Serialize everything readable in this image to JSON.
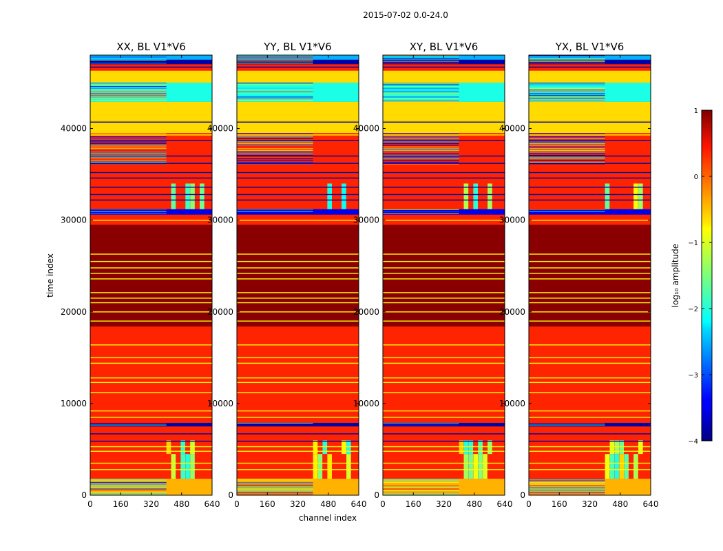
{
  "figure": {
    "suptitle": "2015-07-02 0.0-24.0"
  },
  "chart_data": {
    "type": "heatmap",
    "xlabel": "channel index",
    "ylabel": "time index",
    "xlim": [
      0,
      640
    ],
    "ylim": [
      0,
      48000
    ],
    "xticks": [
      0,
      160,
      320,
      480,
      640
    ],
    "yticks": [
      0,
      10000,
      20000,
      30000,
      40000
    ],
    "panels": [
      {
        "id": "xx",
        "title": "XX, BL V1*V6"
      },
      {
        "id": "yy",
        "title": "YY, BL V1*V6"
      },
      {
        "id": "xy",
        "title": "XY, BL V1*V6"
      },
      {
        "id": "yx",
        "title": "YX, BL V1*V6"
      }
    ],
    "colorbar": {
      "label": "log₁₀ amplitude",
      "colormap": "jet",
      "range": [
        -4,
        1
      ],
      "ticks": [
        1,
        0,
        -1,
        -2,
        -3,
        -4
      ],
      "tick_labels": [
        "1",
        "0",
        "−1",
        "−2",
        "−3",
        "−4"
      ]
    },
    "sharp_channel_edge": 400,
    "rfi_channel_range": [
      400,
      600
    ],
    "time_bands": [
      {
        "t0": 0,
        "t1": 1800,
        "value": -0.5,
        "noise": true
      },
      {
        "t0": 1800,
        "t1": 4500,
        "value": 0.2,
        "flagged_channels": true
      },
      {
        "t0": 4500,
        "t1": 6000,
        "value": 0.2,
        "flagged_channels": true
      },
      {
        "t0": 6000,
        "t1": 7500,
        "value": 0.2
      },
      {
        "t0": 7500,
        "t1": 7900,
        "value": -3.8,
        "noise": true
      },
      {
        "t0": 7900,
        "t1": 18400,
        "value": 0.2
      },
      {
        "t0": 18400,
        "t1": 29500,
        "value": 0.95
      },
      {
        "t0": 29500,
        "t1": 30600,
        "value": 0.2
      },
      {
        "t0": 30600,
        "t1": 31200,
        "value": -3.5,
        "noise": true
      },
      {
        "t0": 31200,
        "t1": 34000,
        "value": 0.2,
        "flagged_channels": true
      },
      {
        "t0": 34000,
        "t1": 36000,
        "value": 0.2
      },
      {
        "t0": 36000,
        "t1": 39500,
        "value": 0.2,
        "noise": true
      },
      {
        "t0": 39500,
        "t1": 40800,
        "value": -0.7
      },
      {
        "t0": 40800,
        "t1": 42900,
        "value": -0.7
      },
      {
        "t0": 42900,
        "t1": 45000,
        "value": -2.0,
        "noise": true
      },
      {
        "t0": 45000,
        "t1": 46300,
        "value": -0.7
      },
      {
        "t0": 46300,
        "t1": 47000,
        "value": 0.2
      },
      {
        "t0": 47000,
        "t1": 47500,
        "value": -3.8,
        "noise": true
      },
      {
        "t0": 47500,
        "t1": 48000,
        "value": -2.5,
        "noise": true
      }
    ],
    "thin_lines": [
      {
        "t": 26300,
        "value": -0.9
      },
      {
        "t": 25500,
        "value": -0.9
      },
      {
        "t": 24800,
        "value": -0.9
      },
      {
        "t": 24200,
        "value": -0.9
      },
      {
        "t": 23600,
        "value": -0.9
      },
      {
        "t": 22100,
        "value": -0.9
      },
      {
        "t": 21500,
        "value": -0.9
      },
      {
        "t": 21000,
        "value": -0.9
      },
      {
        "t": 20000,
        "value": -0.9
      },
      {
        "t": 19000,
        "value": -0.9
      },
      {
        "t": 16400,
        "value": -0.9
      },
      {
        "t": 15000,
        "value": -0.9
      },
      {
        "t": 14400,
        "value": -0.9
      },
      {
        "t": 12800,
        "value": -0.9
      },
      {
        "t": 12300,
        "value": -0.9
      },
      {
        "t": 11200,
        "value": -0.9
      },
      {
        "t": 9200,
        "value": -0.9
      },
      {
        "t": 8500,
        "value": -0.9
      },
      {
        "t": 5300,
        "value": -0.9
      },
      {
        "t": 4800,
        "value": -0.9
      },
      {
        "t": 3500,
        "value": -0.9
      },
      {
        "t": 2800,
        "value": -0.9
      },
      {
        "t": 6700,
        "value": -3.8
      },
      {
        "t": 5900,
        "value": -3.8
      },
      {
        "t": 35200,
        "value": -3.8
      },
      {
        "t": 34600,
        "value": -3.8
      },
      {
        "t": 33600,
        "value": -3.8
      },
      {
        "t": 32800,
        "value": -3.8
      },
      {
        "t": 32200,
        "value": -3.8
      },
      {
        "t": 30000,
        "value": -0.9
      },
      {
        "t": 36200,
        "value": -3.8
      },
      {
        "t": 37000,
        "value": -3.8
      },
      {
        "t": 38700,
        "value": -3.8
      },
      {
        "t": 39300,
        "value": -0.9
      },
      {
        "t": 40700,
        "value": -3.8
      },
      {
        "t": 46700,
        "value": -3.8
      }
    ]
  }
}
